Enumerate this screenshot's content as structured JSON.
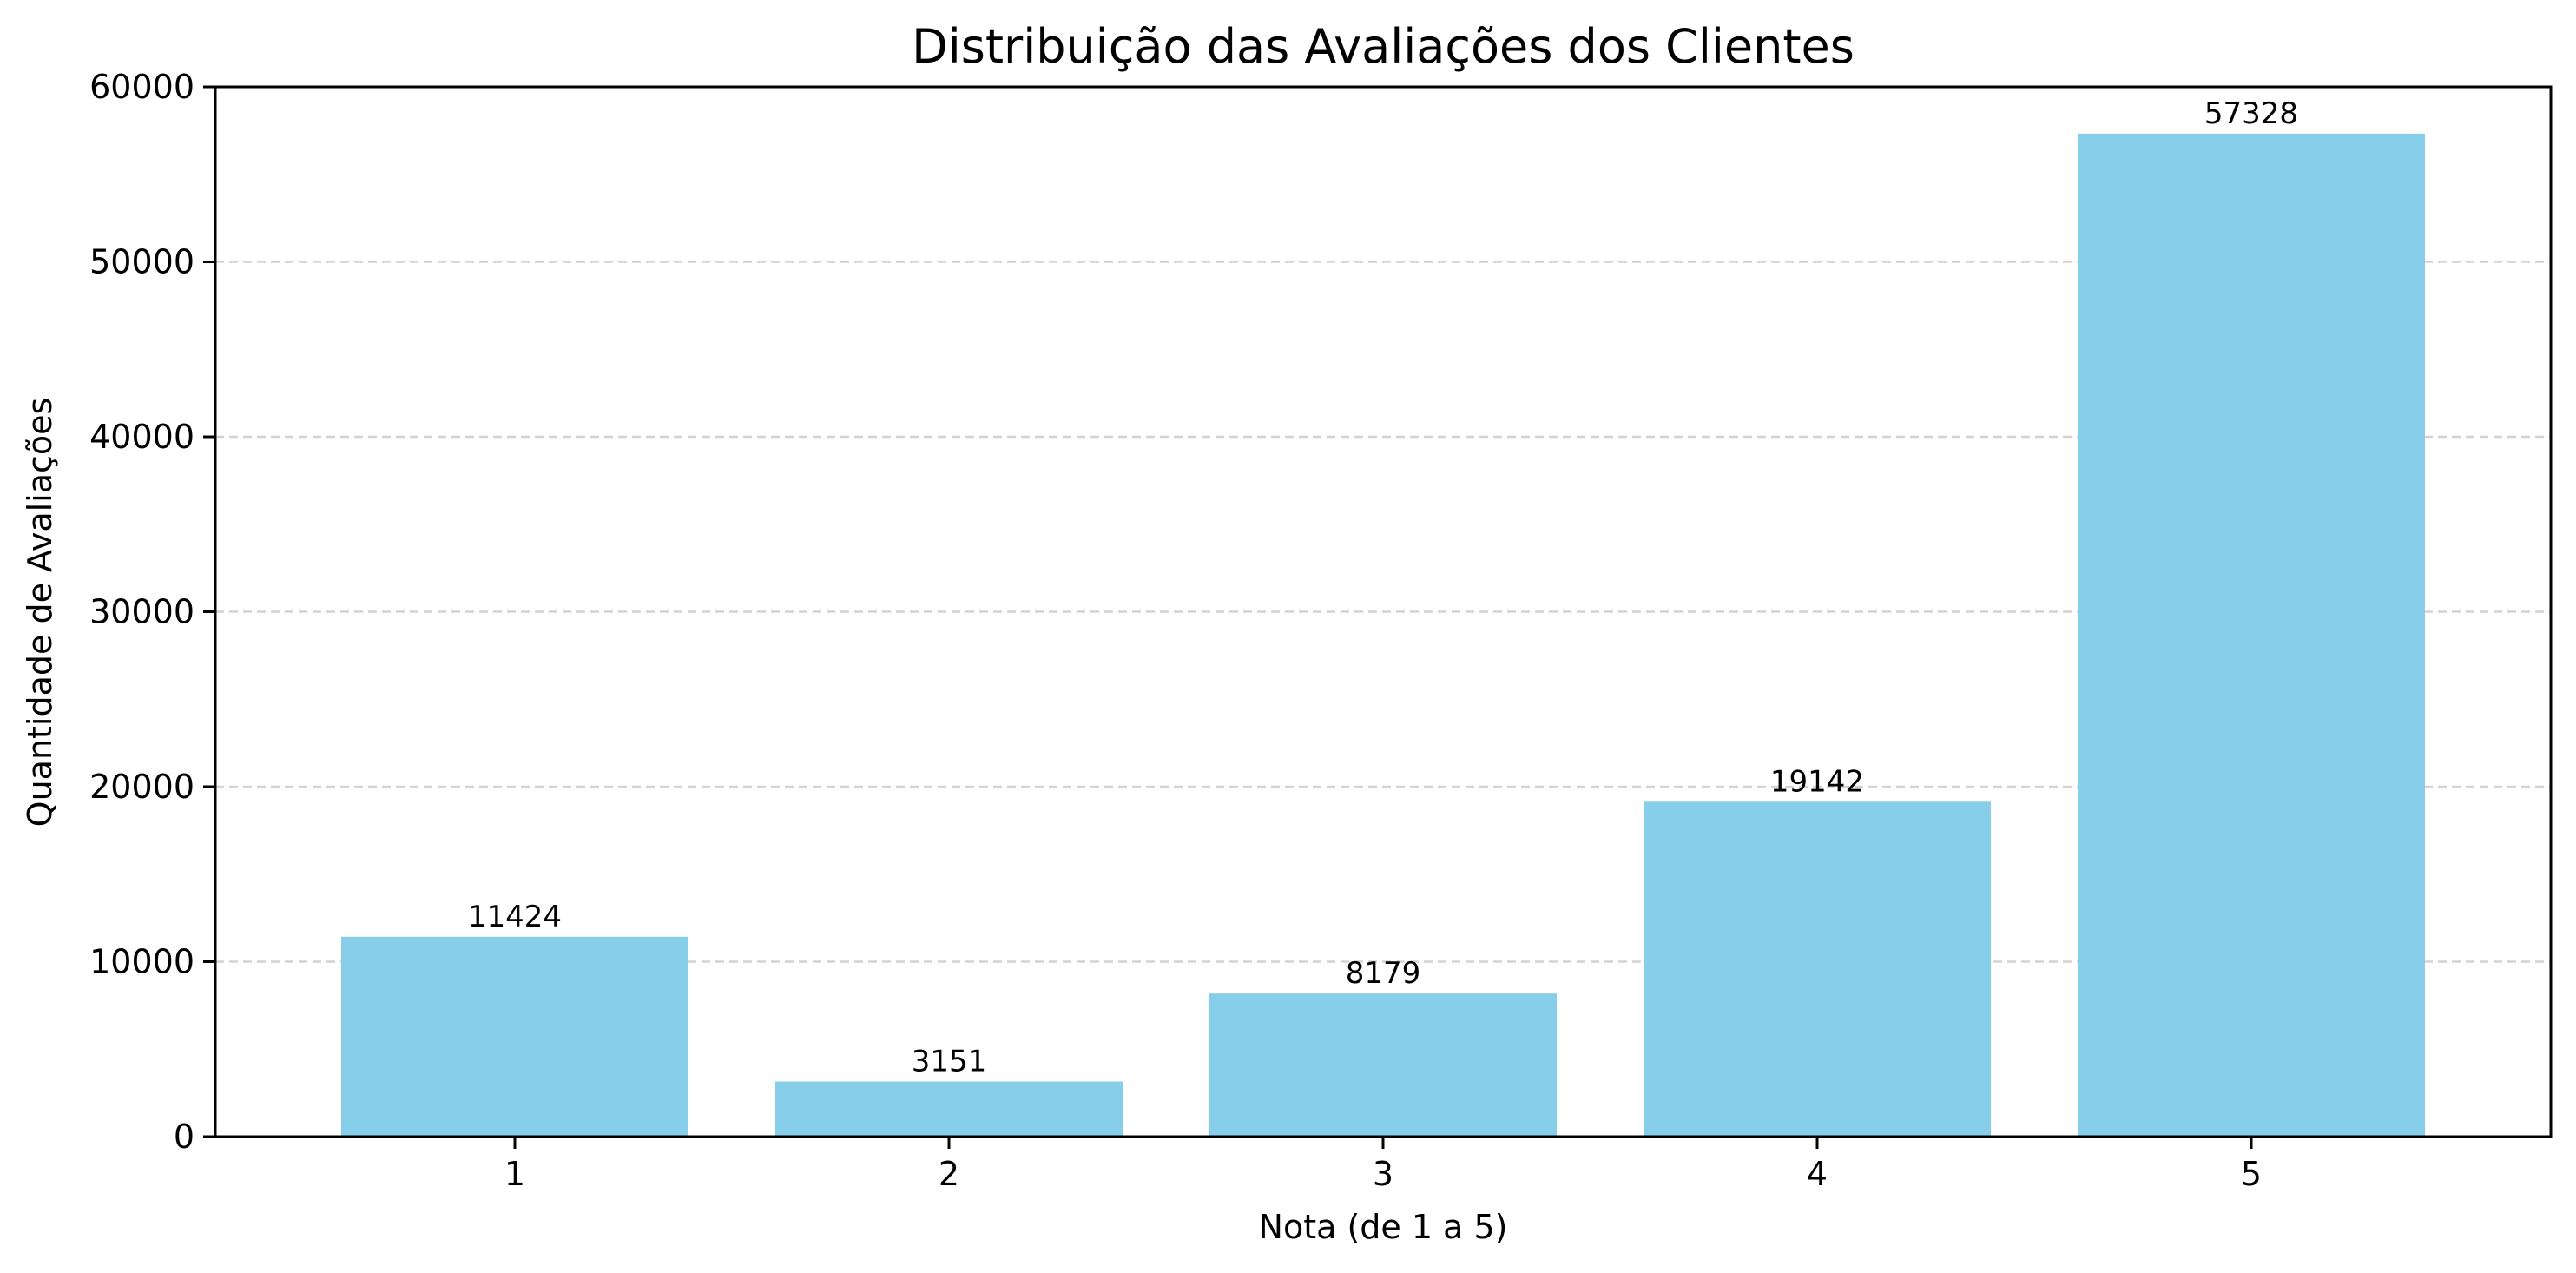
{
  "chart_data": {
    "type": "bar",
    "title": "Distribuição das Avaliações dos Clientes",
    "xlabel": "Nota (de 1 a 5)",
    "ylabel": "Quantidade de Avaliações",
    "categories": [
      "1",
      "2",
      "3",
      "4",
      "5"
    ],
    "values": [
      11424,
      3151,
      8179,
      19142,
      57328
    ],
    "value_labels": [
      "11424",
      "3151",
      "8179",
      "19142",
      "57328"
    ],
    "ylim": [
      0,
      60000
    ],
    "yticks": [
      0,
      10000,
      20000,
      30000,
      40000,
      50000,
      60000
    ],
    "ytick_labels": [
      "0",
      "10000",
      "20000",
      "30000",
      "40000",
      "50000",
      "60000"
    ],
    "grid": {
      "axis": "y",
      "style": "dashed"
    },
    "bar_color": "#87CEEB",
    "grid_color": "#d3d3d3",
    "axis_color": "#000000"
  }
}
